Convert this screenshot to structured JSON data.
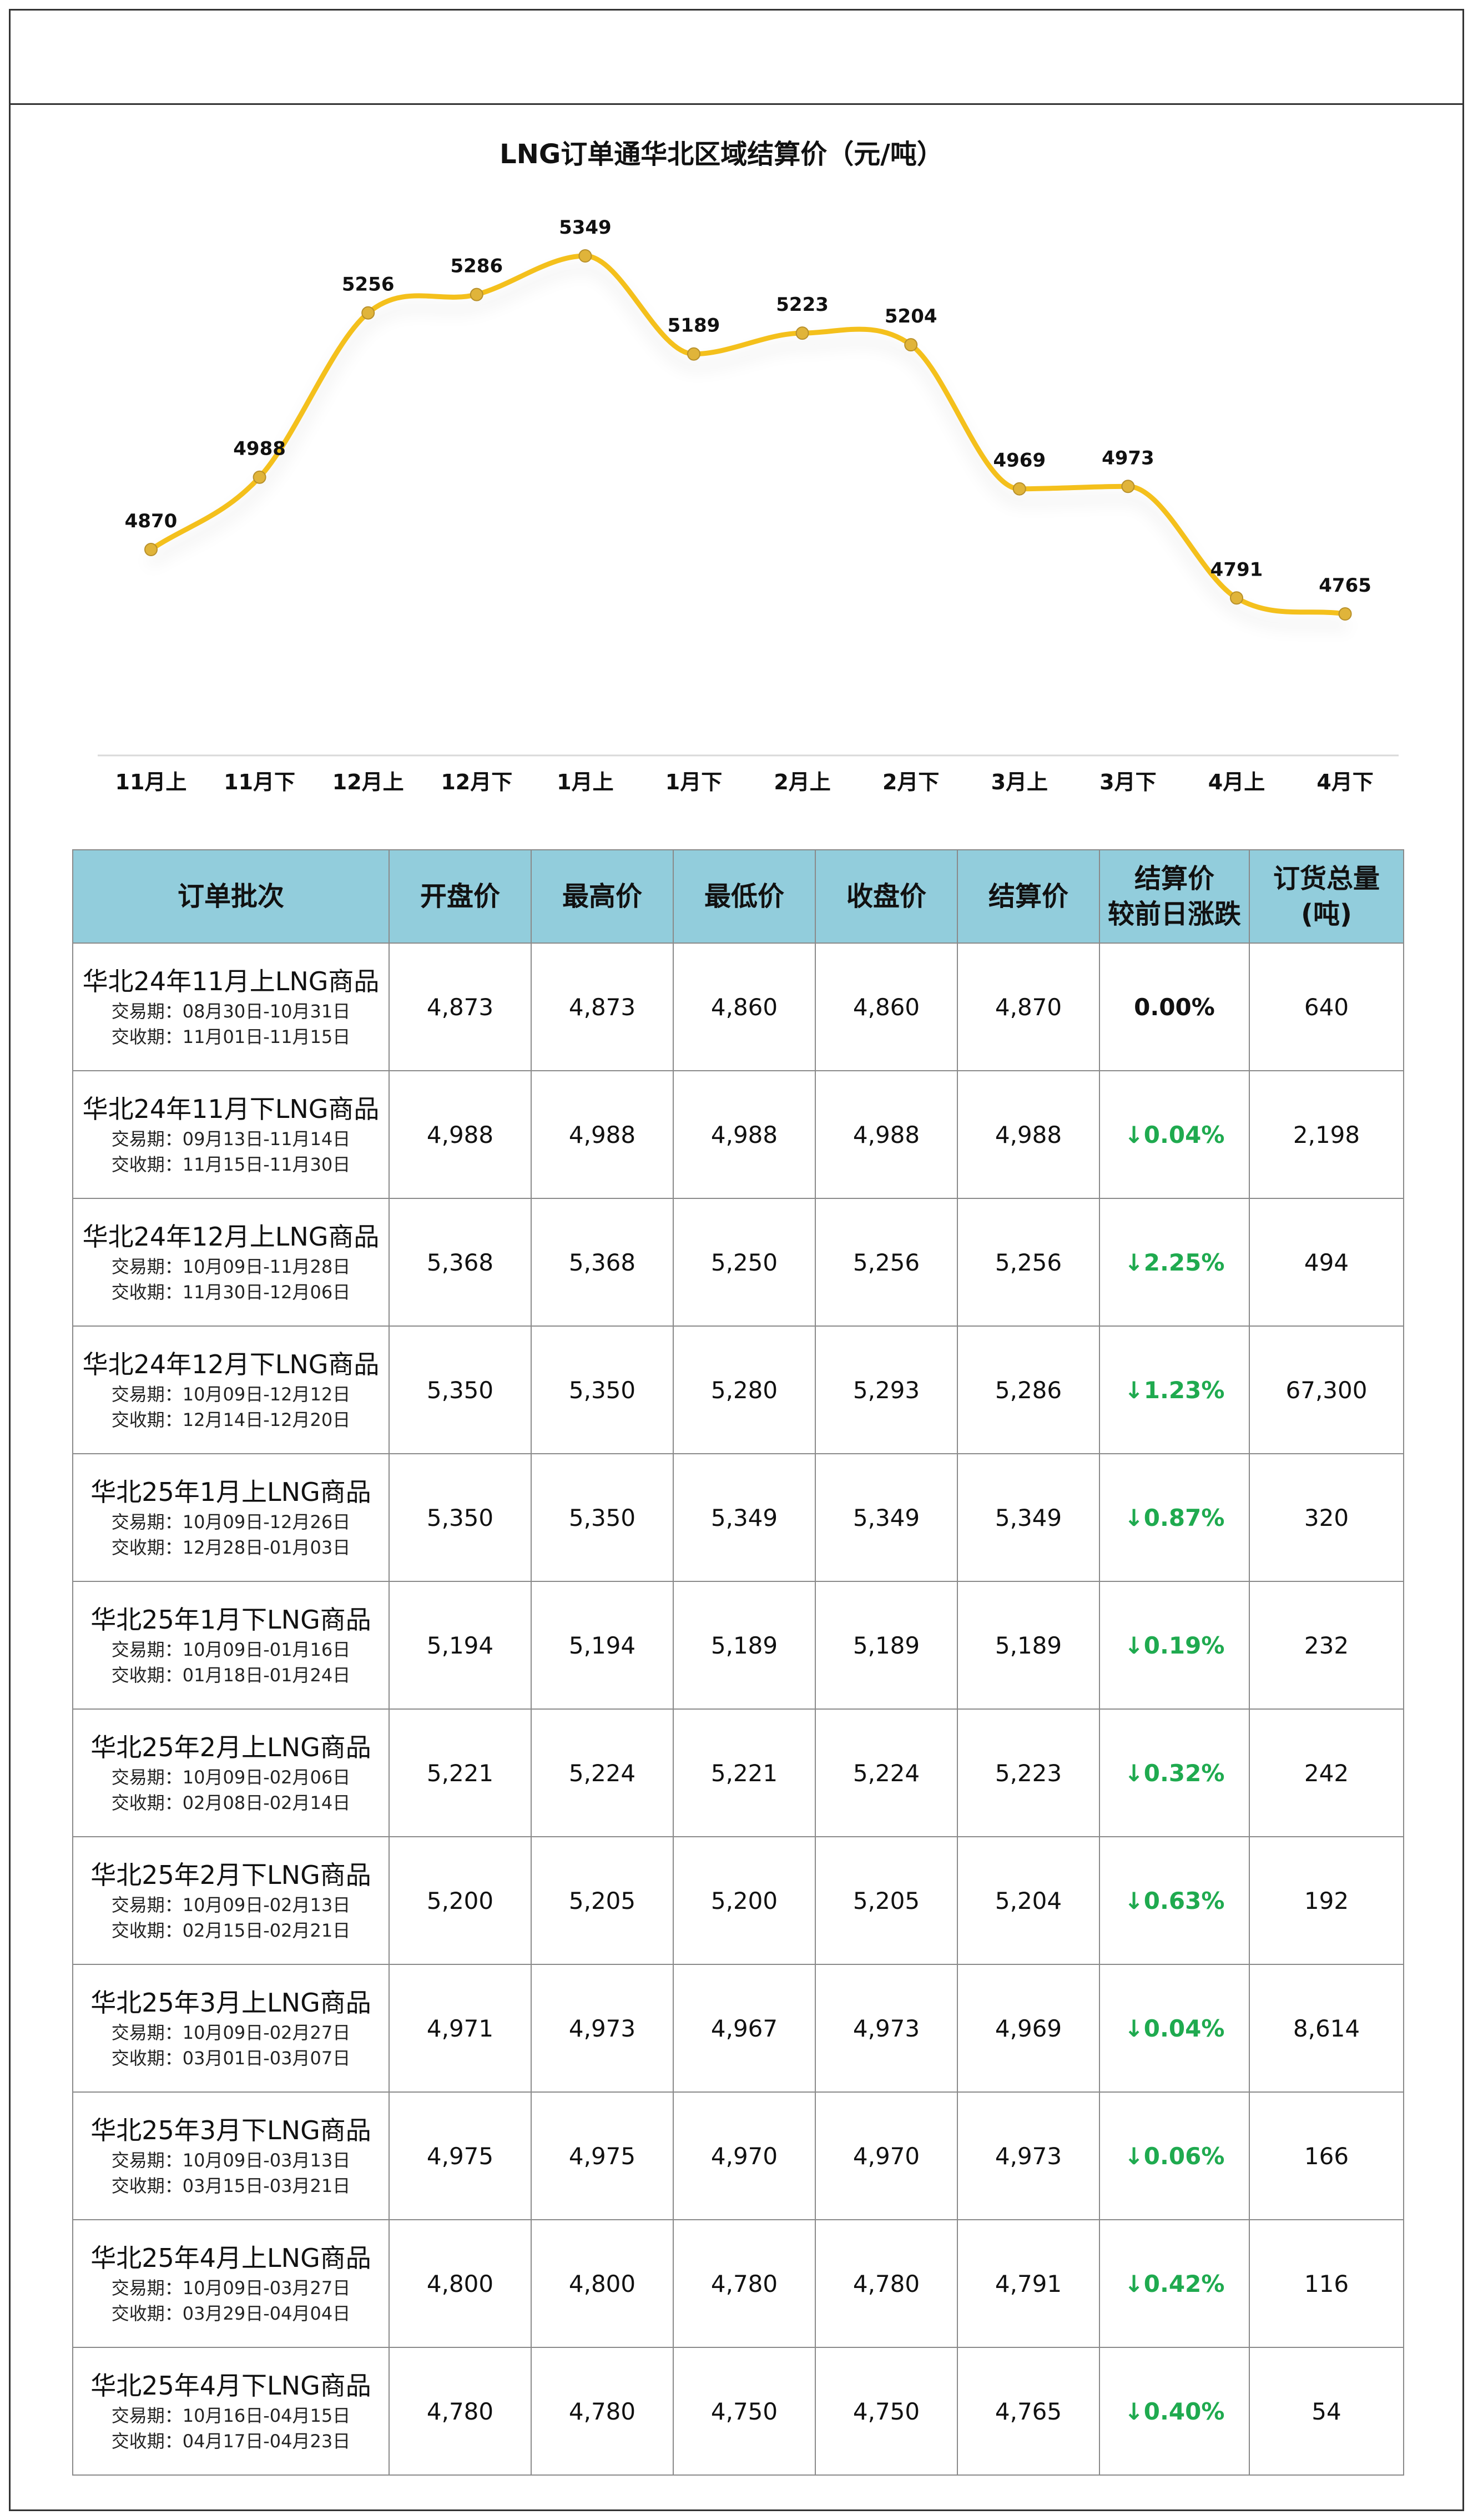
{
  "colors": {
    "line": "#f4c01e",
    "marker": "#e0b43a",
    "header_bg": "#92cddc",
    "down": "#1faa4f"
  },
  "chart_data": {
    "type": "line",
    "title": "LNG订单通华北区域结算价（元/吨）",
    "categories": [
      "11月上",
      "11月下",
      "12月上",
      "12月下",
      "1月上",
      "1月下",
      "2月上",
      "2月下",
      "3月上",
      "3月下",
      "4月上",
      "4月下"
    ],
    "values": [
      4870,
      4988,
      5256,
      5286,
      5349,
      5189,
      5223,
      5204,
      4969,
      4973,
      4791,
      4765
    ],
    "data_labels": true,
    "smooth": true,
    "grid": false,
    "legend": "none"
  },
  "table": {
    "headers": [
      "订单批次",
      "开盘价",
      "最高价",
      "最低价",
      "收盘价",
      "结算价",
      "结算价较前日涨跌",
      "订货总量(吨)"
    ],
    "header_lines": {
      "batch": [
        "订单批次"
      ],
      "open": [
        "开盘价"
      ],
      "high": [
        "最高价"
      ],
      "low": [
        "最低价"
      ],
      "close": [
        "收盘价"
      ],
      "settle": [
        "结算价"
      ],
      "change": [
        "结算价",
        "较前日涨跌"
      ],
      "volume": [
        "订货总量",
        "(吨)"
      ]
    },
    "rows": [
      {
        "name": "华北24年11月上LNG商品",
        "trade": "交易期：08月30日-10月31日",
        "delivery": "交收期：11月01日-11月15日",
        "open": "4,873",
        "high": "4,873",
        "low": "4,860",
        "close": "4,860",
        "settle": "4,870",
        "change": "0.00%",
        "dir": "flat",
        "volume": "640"
      },
      {
        "name": "华北24年11月下LNG商品",
        "trade": "交易期：09月13日-11月14日",
        "delivery": "交收期：11月15日-11月30日",
        "open": "4,988",
        "high": "4,988",
        "low": "4,988",
        "close": "4,988",
        "settle": "4,988",
        "change": "↓0.04%",
        "dir": "down",
        "volume": "2,198"
      },
      {
        "name": "华北24年12月上LNG商品",
        "trade": "交易期：10月09日-11月28日",
        "delivery": "交收期：11月30日-12月06日",
        "open": "5,368",
        "high": "5,368",
        "low": "5,250",
        "close": "5,256",
        "settle": "5,256",
        "change": "↓2.25%",
        "dir": "down",
        "volume": "494"
      },
      {
        "name": "华北24年12月下LNG商品",
        "trade": "交易期：10月09日-12月12日",
        "delivery": "交收期：12月14日-12月20日",
        "open": "5,350",
        "high": "5,350",
        "low": "5,280",
        "close": "5,293",
        "settle": "5,286",
        "change": "↓1.23%",
        "dir": "down",
        "volume": "67,300"
      },
      {
        "name": "华北25年1月上LNG商品",
        "trade": "交易期：10月09日-12月26日",
        "delivery": "交收期：12月28日-01月03日",
        "open": "5,350",
        "high": "5,350",
        "low": "5,349",
        "close": "5,349",
        "settle": "5,349",
        "change": "↓0.87%",
        "dir": "down",
        "volume": "320"
      },
      {
        "name": "华北25年1月下LNG商品",
        "trade": "交易期：10月09日-01月16日",
        "delivery": "交收期：01月18日-01月24日",
        "open": "5,194",
        "high": "5,194",
        "low": "5,189",
        "close": "5,189",
        "settle": "5,189",
        "change": "↓0.19%",
        "dir": "down",
        "volume": "232"
      },
      {
        "name": "华北25年2月上LNG商品",
        "trade": "交易期：10月09日-02月06日",
        "delivery": "交收期：02月08日-02月14日",
        "open": "5,221",
        "high": "5,224",
        "low": "5,221",
        "close": "5,224",
        "settle": "5,223",
        "change": "↓0.32%",
        "dir": "down",
        "volume": "242"
      },
      {
        "name": "华北25年2月下LNG商品",
        "trade": "交易期：10月09日-02月13日",
        "delivery": "交收期：02月15日-02月21日",
        "open": "5,200",
        "high": "5,205",
        "low": "5,200",
        "close": "5,205",
        "settle": "5,204",
        "change": "↓0.63%",
        "dir": "down",
        "volume": "192"
      },
      {
        "name": "华北25年3月上LNG商品",
        "trade": "交易期：10月09日-02月27日",
        "delivery": "交收期：03月01日-03月07日",
        "open": "4,971",
        "high": "4,973",
        "low": "4,967",
        "close": "4,973",
        "settle": "4,969",
        "change": "↓0.04%",
        "dir": "down",
        "volume": "8,614"
      },
      {
        "name": "华北25年3月下LNG商品",
        "trade": "交易期：10月09日-03月13日",
        "delivery": "交收期：03月15日-03月21日",
        "open": "4,975",
        "high": "4,975",
        "low": "4,970",
        "close": "4,970",
        "settle": "4,973",
        "change": "↓0.06%",
        "dir": "down",
        "volume": "166"
      },
      {
        "name": "华北25年4月上LNG商品",
        "trade": "交易期：10月09日-03月27日",
        "delivery": "交收期：03月29日-04月04日",
        "open": "4,800",
        "high": "4,800",
        "low": "4,780",
        "close": "4,780",
        "settle": "4,791",
        "change": "↓0.42%",
        "dir": "down",
        "volume": "116"
      },
      {
        "name": "华北25年4月下LNG商品",
        "trade": "交易期：10月16日-04月15日",
        "delivery": "交收期：04月17日-04月23日",
        "open": "4,780",
        "high": "4,780",
        "low": "4,750",
        "close": "4,750",
        "settle": "4,765",
        "change": "↓0.40%",
        "dir": "down",
        "volume": "54"
      }
    ]
  }
}
